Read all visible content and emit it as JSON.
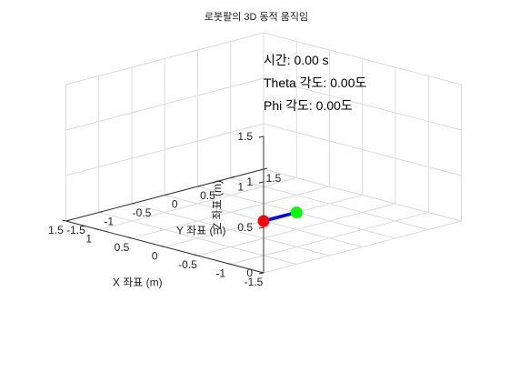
{
  "chart_data": {
    "type": "line3d",
    "title": "로봇팔의 3D 동적 움직임",
    "xlabel": "X 좌표 (m)",
    "ylabel": "Y 좌표 (m)",
    "zlabel": "Z 좌표 (m)",
    "xlim": [
      -1.5,
      1.5
    ],
    "ylim": [
      -1.5,
      1.5
    ],
    "zlim": [
      0,
      1.5
    ],
    "xticks": [
      "-1.5",
      "-1",
      "-0.5",
      "0",
      "0.5",
      "1",
      "1.5"
    ],
    "yticks": [
      "-1.5",
      "-1",
      "-0.5",
      "0",
      "0.5",
      "1",
      "1.5"
    ],
    "zticks": [
      "0",
      "0.5",
      "1",
      "1.5"
    ],
    "grid": true,
    "segment": {
      "color": "#0000ff",
      "start": {
        "x": 0,
        "y": 0,
        "z": 0,
        "color": "#ff0000"
      },
      "end": {
        "x": 0,
        "y": 0.5,
        "z": 0,
        "color": "#00ff00"
      }
    },
    "annotations": [
      "시간: 0.00 s",
      "Theta 각도: 0.00도",
      "Phi 각도: 0.00도"
    ]
  }
}
